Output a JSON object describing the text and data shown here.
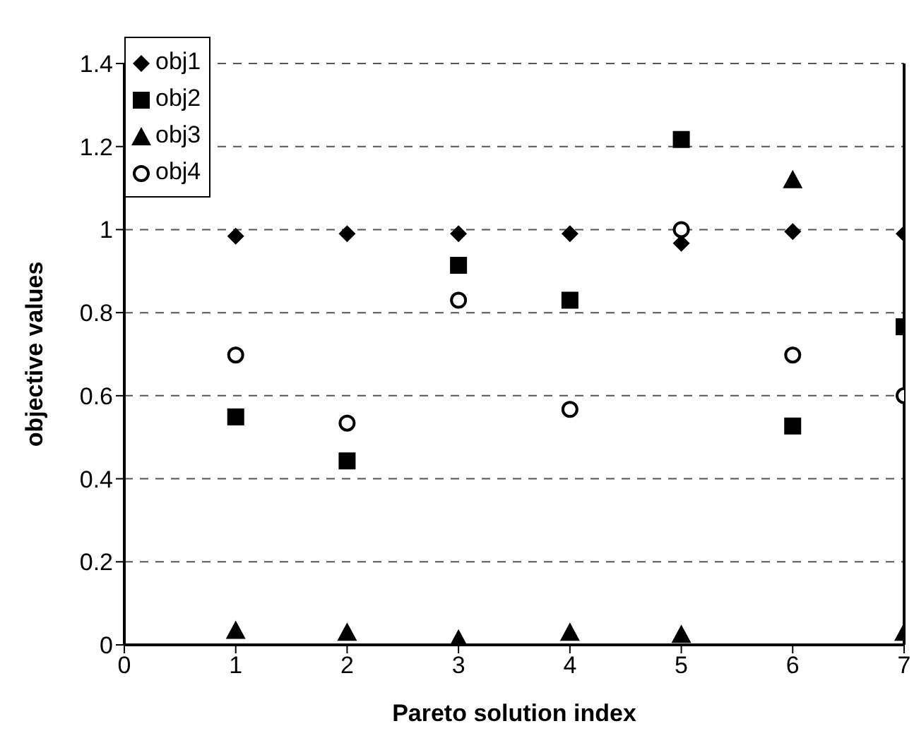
{
  "chart_data": {
    "type": "scatter",
    "xlabel": "Pareto solution index",
    "ylabel": "objective values",
    "x": [
      1,
      2,
      3,
      4,
      5,
      6,
      7
    ],
    "series": [
      {
        "name": "obj1",
        "color": "#000000",
        "marker": "diamond",
        "values": [
          0.984,
          0.99,
          0.99,
          0.99,
          0.967,
          0.995,
          0.99
        ]
      },
      {
        "name": "obj2",
        "color": "#000000",
        "marker": "square",
        "values": [
          0.549,
          0.443,
          0.914,
          0.83,
          1.217,
          0.527,
          0.766
        ]
      },
      {
        "name": "obj3",
        "color": "#000000",
        "marker": "triangle",
        "values": [
          0.035,
          0.03,
          0.014,
          0.03,
          0.025,
          1.12,
          0.03
        ]
      },
      {
        "name": "obj4",
        "color": "#000000",
        "marker": "circle",
        "values": [
          0.698,
          0.534,
          0.83,
          0.567,
          1.0,
          0.698,
          0.6
        ]
      }
    ],
    "xlim": [
      0,
      7
    ],
    "xticks": [
      0,
      1,
      2,
      3,
      4,
      5,
      6,
      7
    ],
    "ylim": [
      0,
      1.4
    ],
    "yticks": [
      0,
      0.2,
      0.4,
      0.6,
      0.8,
      1,
      1.2,
      1.4
    ],
    "grid": "y",
    "legend": "top left"
  }
}
